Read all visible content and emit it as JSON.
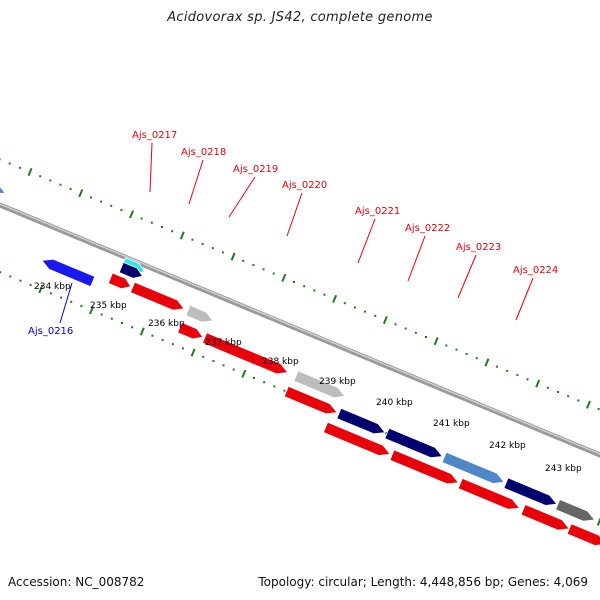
{
  "title": "Acidovorax sp. JS42, complete genome",
  "footer": {
    "accession": "Accession: NC_008782",
    "summary": "Topology: circular; Length: 4,448,856 bp; Genes: 4,069"
  },
  "colors": {
    "forward_label": "#e8000b",
    "reverse_label": "#0000cc",
    "backbone": "#7a7a7a",
    "ticks": "#1f7a1f",
    "red_gene": "#e8000b",
    "navy_gene": "#00006e",
    "steel_gene": "#4f86c6",
    "grey_gene": "#bdbdbd",
    "blue_gene": "#1a1aee",
    "cyan_gene": "#2ee6f0"
  },
  "ruler": {
    "kbp_labels": [
      "234 kbp",
      "235 kbp",
      "236 kbp",
      "237 kbp",
      "238 kbp",
      "239 kbp",
      "240 kbp",
      "241 kbp",
      "242 kbp",
      "243 kbp"
    ]
  },
  "genes": {
    "labels": [
      {
        "text": "Ajs_0216",
        "strand": "reverse"
      },
      {
        "text": "Ajs_0217",
        "strand": "forward"
      },
      {
        "text": "Ajs_0218",
        "strand": "forward"
      },
      {
        "text": "Ajs_0219",
        "strand": "forward"
      },
      {
        "text": "Ajs_0220",
        "strand": "forward"
      },
      {
        "text": "Ajs_0221",
        "strand": "forward"
      },
      {
        "text": "Ajs_0222",
        "strand": "forward"
      },
      {
        "text": "Ajs_0223",
        "strand": "forward"
      },
      {
        "text": "Ajs_0224",
        "strand": "forward"
      }
    ]
  }
}
